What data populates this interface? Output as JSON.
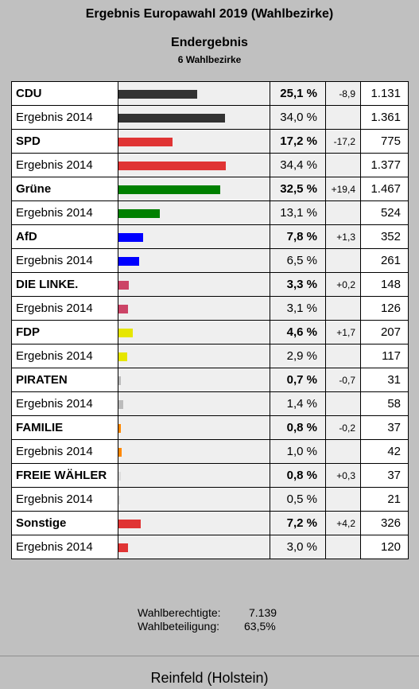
{
  "header": {
    "title": "Ergebnis Europawahl 2019 (Wahlbezirke)",
    "subtitle": "Endergebnis",
    "count": "6 Wahlbezirke"
  },
  "chart_data": {
    "type": "bar",
    "bar_max_percent": 36,
    "rows": [
      {
        "name": "CDU",
        "kind": "party",
        "percent": 25.1,
        "pct_text": "25,1 %",
        "diff": "-8,9",
        "votes": "1.131",
        "color": "#333333"
      },
      {
        "name": "Ergebnis 2014",
        "kind": "prev",
        "percent": 34.0,
        "pct_text": "34,0 %",
        "diff": "",
        "votes": "1.361",
        "color": "#333333"
      },
      {
        "name": "SPD",
        "kind": "party",
        "percent": 17.2,
        "pct_text": "17,2 %",
        "diff": "-17,2",
        "votes": "775",
        "color": "#e03434"
      },
      {
        "name": "Ergebnis 2014",
        "kind": "prev",
        "percent": 34.4,
        "pct_text": "34,4 %",
        "diff": "",
        "votes": "1.377",
        "color": "#e03434"
      },
      {
        "name": "Grüne",
        "kind": "party",
        "percent": 32.5,
        "pct_text": "32,5 %",
        "diff": "+19,4",
        "votes": "1.467",
        "color": "#008000"
      },
      {
        "name": "Ergebnis 2014",
        "kind": "prev",
        "percent": 13.1,
        "pct_text": "13,1 %",
        "diff": "",
        "votes": "524",
        "color": "#008000"
      },
      {
        "name": "AfD",
        "kind": "party",
        "percent": 7.8,
        "pct_text": "7,8 %",
        "diff": "+1,3",
        "votes": "352",
        "color": "#0000ff"
      },
      {
        "name": "Ergebnis 2014",
        "kind": "prev",
        "percent": 6.5,
        "pct_text": "6,5 %",
        "diff": "",
        "votes": "261",
        "color": "#0000ff"
      },
      {
        "name": "DIE LINKE.",
        "kind": "party",
        "percent": 3.3,
        "pct_text": "3,3 %",
        "diff": "+0,2",
        "votes": "148",
        "color": "#cc4466"
      },
      {
        "name": "Ergebnis 2014",
        "kind": "prev",
        "percent": 3.1,
        "pct_text": "3,1 %",
        "diff": "",
        "votes": "126",
        "color": "#cc4466"
      },
      {
        "name": "FDP",
        "kind": "party",
        "percent": 4.6,
        "pct_text": "4,6 %",
        "diff": "+1,7",
        "votes": "207",
        "color": "#e6e600"
      },
      {
        "name": "Ergebnis 2014",
        "kind": "prev",
        "percent": 2.9,
        "pct_text": "2,9 %",
        "diff": "",
        "votes": "117",
        "color": "#e6e600"
      },
      {
        "name": "PIRATEN",
        "kind": "party",
        "percent": 0.7,
        "pct_text": "0,7 %",
        "diff": "-0,7",
        "votes": "31",
        "color": "#bbbbbb"
      },
      {
        "name": "Ergebnis 2014",
        "kind": "prev",
        "percent": 1.4,
        "pct_text": "1,4 %",
        "diff": "",
        "votes": "58",
        "color": "#bbbbbb"
      },
      {
        "name": "FAMILIE",
        "kind": "party",
        "percent": 0.8,
        "pct_text": "0,8 %",
        "diff": "-0,2",
        "votes": "37",
        "color": "#ff8800"
      },
      {
        "name": "Ergebnis 2014",
        "kind": "prev",
        "percent": 1.0,
        "pct_text": "1,0 %",
        "diff": "",
        "votes": "42",
        "color": "#ff8800"
      },
      {
        "name": "FREIE WÄHLER",
        "kind": "party",
        "percent": 0.8,
        "pct_text": "0,8 %",
        "diff": "+0,3",
        "votes": "37",
        "color": "#dddddd"
      },
      {
        "name": "Ergebnis 2014",
        "kind": "prev",
        "percent": 0.5,
        "pct_text": "0,5 %",
        "diff": "",
        "votes": "21",
        "color": "#dddddd"
      },
      {
        "name": "Sonstige",
        "kind": "party",
        "percent": 7.2,
        "pct_text": "7,2 %",
        "diff": "+4,2",
        "votes": "326",
        "color": "#e03434"
      },
      {
        "name": "Ergebnis 2014",
        "kind": "prev",
        "percent": 3.0,
        "pct_text": "3,0 %",
        "diff": "",
        "votes": "120",
        "color": "#e03434"
      }
    ]
  },
  "stats": {
    "eligible_label": "Wahlberechtigte:",
    "eligible_value": "7.139",
    "turnout_label": "Wahlbeteiligung:",
    "turnout_value": "63,5%"
  },
  "footer": {
    "place": "Reinfeld (Holstein)"
  }
}
